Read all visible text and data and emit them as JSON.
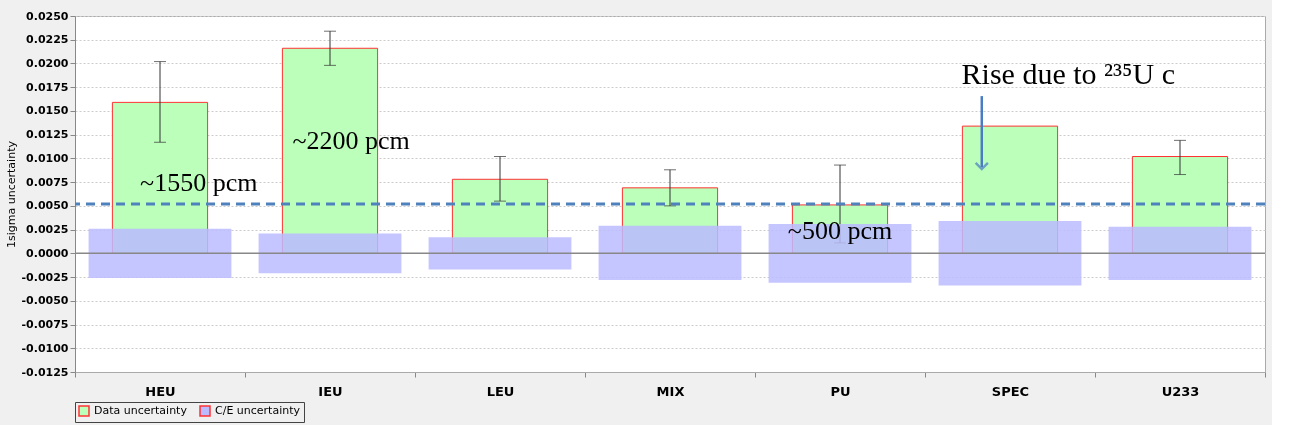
{
  "chart_data": {
    "type": "bar",
    "ylabel": "1sigma uncertainty",
    "categories": [
      "HEU",
      "IEU",
      "LEU",
      "MIX",
      "PU",
      "SPEC",
      "U233"
    ],
    "series": [
      {
        "name": "Data uncertainty",
        "color": "#bbffbb",
        "values": [
          0.0159,
          0.0216,
          0.0078,
          0.0069,
          0.0051,
          0.0134,
          0.0102
        ],
        "errors": [
          [
            0.0117,
            0.0202
          ],
          [
            0.0198,
            0.0234
          ],
          [
            0.0055,
            0.0102
          ],
          [
            0.005,
            0.0088
          ],
          [
            0.0011,
            0.0093
          ],
          null,
          [
            0.0083,
            0.0119
          ]
        ]
      },
      {
        "name": "C/E uncertainty",
        "color": "#bbbbff",
        "base": [
          -0.0026,
          -0.0021,
          -0.0017,
          -0.0028,
          -0.0031,
          -0.0034,
          -0.0028
        ],
        "values": [
          0.0052,
          0.0042,
          0.0034,
          0.0057,
          0.0062,
          0.0068,
          0.0056
        ]
      }
    ],
    "ylim": [
      -0.0125,
      0.025
    ],
    "yticks": [
      {
        "value": -0.0125,
        "label": "-0.0125"
      },
      {
        "value": -0.01,
        "label": "-0.0100"
      },
      {
        "value": -0.0075,
        "label": "-0.0075"
      },
      {
        "value": -0.005,
        "label": "-0.0050"
      },
      {
        "value": -0.0025,
        "label": "-0.0025"
      },
      {
        "value": 0,
        "label": "0.0000"
      },
      {
        "value": 0.0025,
        "label": "0.0025"
      },
      {
        "value": 0.005,
        "label": "0.0050"
      },
      {
        "value": 0.0075,
        "label": "0.0075"
      },
      {
        "value": 0.01,
        "label": "0.0100"
      },
      {
        "value": 0.0125,
        "label": "0.0125"
      },
      {
        "value": 0.015,
        "label": "0.0150"
      },
      {
        "value": 0.0175,
        "label": "0.0175"
      },
      {
        "value": 0.02,
        "label": "0.0200"
      },
      {
        "value": 0.0225,
        "label": "0.0225"
      },
      {
        "value": 0.025,
        "label": "0.0250"
      }
    ],
    "ref_lines": [
      {
        "axis": "y",
        "value": 0.0052,
        "color": "#4f81bd",
        "line_style": "dashed"
      }
    ],
    "annotations": [
      "~1550 pcm",
      "~2200 pcm",
      {
        "text": "~500 pcm",
        "x": "PU",
        "y": 0.0023
      },
      "Rise due to ²³⁵U c"
    ],
    "grid": "y",
    "legend": "bottom"
  }
}
